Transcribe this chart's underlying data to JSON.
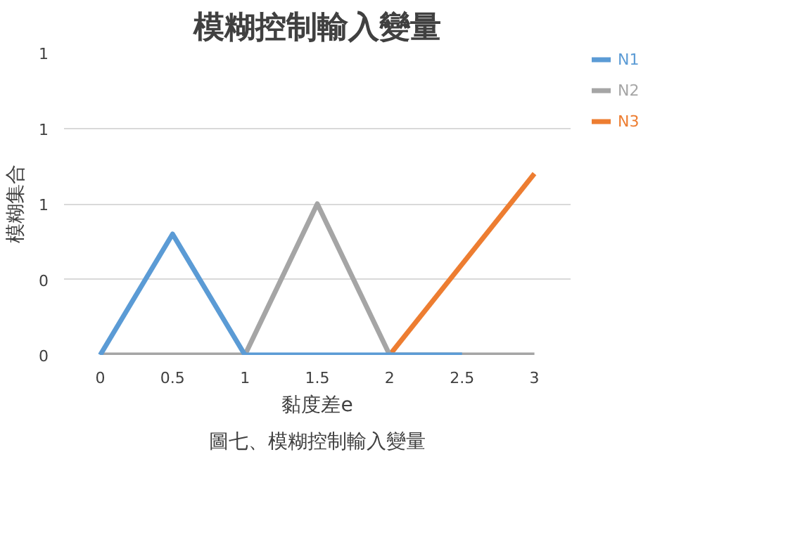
{
  "chart_data": {
    "type": "line",
    "title": "模糊控制輸入變量",
    "xlabel": "黏度差e",
    "ylabel": "模糊集合",
    "annotations": [
      "圖七、模糊控制輸入變量"
    ],
    "xlim": [
      -0.25,
      3.25
    ],
    "ylim": [
      0,
      1
    ],
    "xticks": [
      0,
      0.5,
      1,
      1.5,
      2,
      2.5,
      3
    ],
    "yticks": [
      {
        "value": 0,
        "label": "0"
      },
      {
        "value": 0.25,
        "label": "0"
      },
      {
        "value": 0.5,
        "label": "1"
      },
      {
        "value": 0.75,
        "label": "1"
      },
      {
        "value": 1,
        "label": "1"
      }
    ],
    "grid": "y",
    "legend": "right",
    "marker": "none",
    "line_style": "solid",
    "series": [
      {
        "name": "N1",
        "color": "#5b9bd5",
        "x": [
          0,
          0.5,
          1,
          1.5,
          2,
          2.5
        ],
        "values": [
          0,
          0.4,
          0,
          0,
          0,
          0
        ]
      },
      {
        "name": "N2",
        "color": "#a5a5a5",
        "x": [
          0,
          0.5,
          1,
          1.5,
          2,
          2.5,
          3
        ],
        "values": [
          0,
          0,
          0,
          0.5,
          0,
          0,
          0
        ]
      },
      {
        "name": "N3",
        "color": "#ed7d31",
        "x": [
          2,
          3
        ],
        "values": [
          0,
          0.6
        ]
      }
    ]
  }
}
